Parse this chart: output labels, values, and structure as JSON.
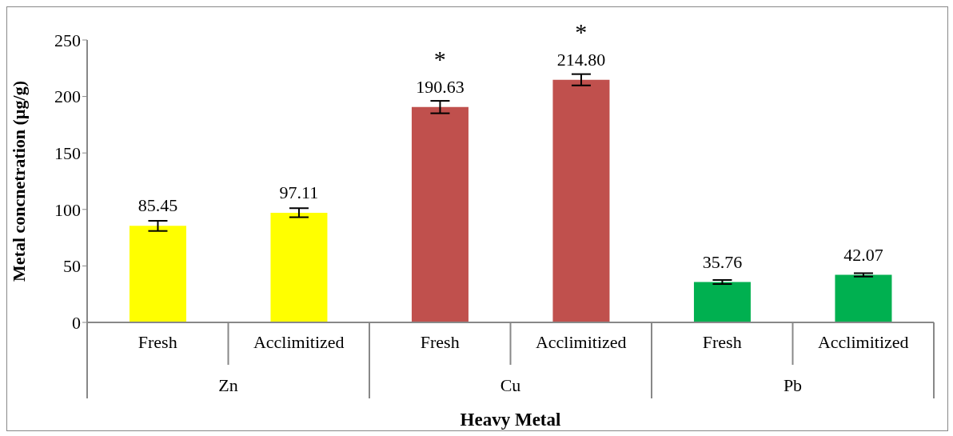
{
  "chart_data": {
    "type": "bar",
    "xlabel": "Heavy Metal",
    "ylabel": "Metal concnetration (µg/g)",
    "categories": [
      "Fresh",
      "Acclimitized",
      "Fresh",
      "Acclimitized",
      "Fresh",
      "Acclimitized"
    ],
    "values": [
      85.45,
      97.11,
      190.63,
      214.8,
      35.76,
      42.07
    ],
    "value_labels": [
      "85.45",
      "97.11",
      "190.63",
      "214.80",
      "35.76",
      "42.07"
    ],
    "errors": [
      4.5,
      4,
      5.5,
      5,
      1.8,
      1.5
    ],
    "colors": [
      "#ffff00",
      "#ffff00",
      "#c0504d",
      "#c0504d",
      "#00b050",
      "#00b050"
    ],
    "ylim": [
      0,
      250
    ],
    "yticks": [
      0,
      50,
      100,
      150,
      200,
      250
    ],
    "grid": false,
    "annotations": [
      "Zn",
      "Cu",
      "Pb",
      "*",
      "*"
    ]
  }
}
